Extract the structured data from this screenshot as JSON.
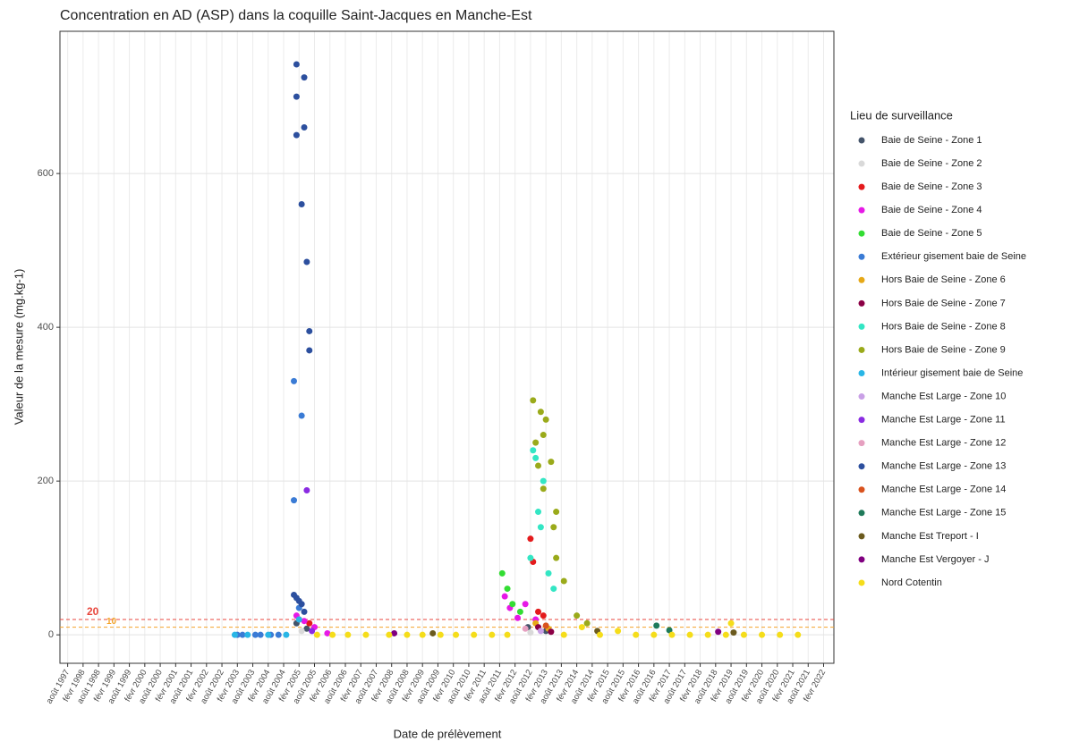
{
  "chart_data": {
    "type": "scatter",
    "title": "Concentration en AD (ASP) dans la coquille Saint-Jacques en Manche-Est",
    "x_label": "Date de prélèvement",
    "y_label": "Valeur de la mesure (mg.kg-1)",
    "legend_title": "Lieu de surveillance",
    "legend": "right",
    "grid": true,
    "xlim": [
      "1997-05",
      "2022-06"
    ],
    "ylim": [
      -37,
      785
    ],
    "yticks": [
      0,
      200,
      400,
      600
    ],
    "xticks": [
      {
        "value": "1997-08",
        "label": "août 1997"
      },
      {
        "value": "1998-02",
        "label": "févr 1998"
      },
      {
        "value": "1998-08",
        "label": "août 1998"
      },
      {
        "value": "1999-02",
        "label": "févr 1999"
      },
      {
        "value": "1999-08",
        "label": "août 1999"
      },
      {
        "value": "2000-02",
        "label": "févr 2000"
      },
      {
        "value": "2000-08",
        "label": "août 2000"
      },
      {
        "value": "2001-02",
        "label": "févr 2001"
      },
      {
        "value": "2001-08",
        "label": "août 2001"
      },
      {
        "value": "2002-02",
        "label": "févr 2002"
      },
      {
        "value": "2002-08",
        "label": "août 2002"
      },
      {
        "value": "2003-02",
        "label": "févr 2003"
      },
      {
        "value": "2003-08",
        "label": "août 2003"
      },
      {
        "value": "2004-02",
        "label": "févr 2004"
      },
      {
        "value": "2004-08",
        "label": "août 2004"
      },
      {
        "value": "2005-02",
        "label": "févr 2005"
      },
      {
        "value": "2005-08",
        "label": "août 2005"
      },
      {
        "value": "2006-02",
        "label": "févr 2006"
      },
      {
        "value": "2006-08",
        "label": "août 2006"
      },
      {
        "value": "2007-02",
        "label": "févr 2007"
      },
      {
        "value": "2007-08",
        "label": "août 2007"
      },
      {
        "value": "2008-02",
        "label": "févr 2008"
      },
      {
        "value": "2008-08",
        "label": "août 2008"
      },
      {
        "value": "2009-02",
        "label": "févr 2009"
      },
      {
        "value": "2009-08",
        "label": "août 2009"
      },
      {
        "value": "2010-02",
        "label": "févr 2010"
      },
      {
        "value": "2010-08",
        "label": "août 2010"
      },
      {
        "value": "2011-02",
        "label": "févr 2011"
      },
      {
        "value": "2011-08",
        "label": "août 2011"
      },
      {
        "value": "2012-02",
        "label": "févr 2012"
      },
      {
        "value": "2012-08",
        "label": "août 2012"
      },
      {
        "value": "2013-02",
        "label": "févr 2013"
      },
      {
        "value": "2013-08",
        "label": "août 2013"
      },
      {
        "value": "2014-02",
        "label": "févr 2014"
      },
      {
        "value": "2014-08",
        "label": "août 2014"
      },
      {
        "value": "2015-02",
        "label": "févr 2015"
      },
      {
        "value": "2015-08",
        "label": "août 2015"
      },
      {
        "value": "2016-02",
        "label": "févr 2016"
      },
      {
        "value": "2016-08",
        "label": "août 2016"
      },
      {
        "value": "2017-02",
        "label": "févr 2017"
      },
      {
        "value": "2017-08",
        "label": "août 2017"
      },
      {
        "value": "2018-02",
        "label": "févr 2018"
      },
      {
        "value": "2018-08",
        "label": "août 2018"
      },
      {
        "value": "2019-02",
        "label": "févr 2019"
      },
      {
        "value": "2019-08",
        "label": "août 2019"
      },
      {
        "value": "2020-02",
        "label": "févr 2020"
      },
      {
        "value": "2020-08",
        "label": "août 2020"
      },
      {
        "value": "2021-02",
        "label": "févr 2021"
      },
      {
        "value": "2021-08",
        "label": "août 2021"
      },
      {
        "value": "2022-02",
        "label": "févr 2022"
      }
    ],
    "hlines": [
      {
        "value": 20,
        "color": "#e8463c"
      },
      {
        "value": 10,
        "color": "#f4a32a"
      }
    ],
    "series": [
      {
        "name": "Baie de Seine - Zone 1",
        "color": "#44546a",
        "x": [
          "2005-01",
          "2005-05",
          "2012-07",
          "2013-02"
        ],
        "values": [
          15,
          8,
          10,
          5
        ]
      },
      {
        "name": "Baie de Seine - Zone 2",
        "color": "#d9d9d9",
        "x": [
          "2005-03",
          "2012-08"
        ],
        "values": [
          5,
          3
        ]
      },
      {
        "name": "Baie de Seine - Zone 3",
        "color": "#e41a1c",
        "x": [
          "2005-02",
          "2005-06",
          "2012-08",
          "2012-09",
          "2012-11",
          "2013-01"
        ],
        "values": [
          20,
          15,
          125,
          95,
          30,
          25
        ]
      },
      {
        "name": "Baie de Seine - Zone 4",
        "color": "#e619e6",
        "x": [
          "2005-01",
          "2005-04",
          "2005-08",
          "2006-01",
          "2011-10",
          "2011-12",
          "2012-03",
          "2012-06",
          "2012-10"
        ],
        "values": [
          25,
          18,
          10,
          2,
          50,
          35,
          22,
          40,
          20
        ]
      },
      {
        "name": "Baie de Seine - Zone 5",
        "color": "#33dd33",
        "x": [
          "2011-09",
          "2011-11",
          "2012-01",
          "2012-04"
        ],
        "values": [
          80,
          60,
          40,
          30
        ]
      },
      {
        "name": "Extérieur gisement baie de Seine",
        "color": "#3a7bd5",
        "x": [
          "2003-02",
          "2003-04",
          "2003-09",
          "2003-11",
          "2004-03",
          "2004-06",
          "2004-12",
          "2005-03",
          "2004-12",
          "2005-02"
        ],
        "values": [
          0,
          0,
          0,
          0,
          0,
          0,
          330,
          285,
          175,
          35
        ]
      },
      {
        "name": "Hors Baie de Seine - Zone 6",
        "color": "#e6a817",
        "x": [
          "2012-10",
          "2013-03"
        ],
        "values": [
          15,
          8
        ]
      },
      {
        "name": "Hors Baie de Seine - Zone 7",
        "color": "#8b0045",
        "x": [
          "2012-11",
          "2013-04"
        ],
        "values": [
          10,
          4
        ]
      },
      {
        "name": "Hors Baie de Seine - Zone 8",
        "color": "#33e6c4",
        "x": [
          "2012-09",
          "2012-10",
          "2012-11",
          "2012-12",
          "2013-01",
          "2013-03",
          "2013-05",
          "2012-08"
        ],
        "values": [
          240,
          230,
          160,
          140,
          200,
          80,
          60,
          100
        ]
      },
      {
        "name": "Hors Baie de Seine - Zone 9",
        "color": "#9aaa1a",
        "x": [
          "2012-09",
          "2012-12",
          "2013-02",
          "2013-01",
          "2012-10",
          "2013-04",
          "2012-11",
          "2013-01",
          "2013-06",
          "2013-05",
          "2013-06",
          "2013-09",
          "2014-02",
          "2014-06"
        ],
        "values": [
          305,
          290,
          280,
          260,
          250,
          225,
          220,
          190,
          160,
          140,
          100,
          70,
          25,
          15
        ]
      },
      {
        "name": "Intérieur gisement baie de Seine",
        "color": "#29b6e6",
        "x": [
          "2003-01",
          "2003-06",
          "2004-02",
          "2004-09",
          "2005-02"
        ],
        "values": [
          0,
          0,
          0,
          0,
          20
        ]
      },
      {
        "name": "Manche Est Large - Zone 10",
        "color": "#c9a0e6",
        "x": [
          "2012-12"
        ],
        "values": [
          5
        ]
      },
      {
        "name": "Manche Est Large - Zone 11",
        "color": "#8a2be2",
        "x": [
          "2005-05",
          "2005-07"
        ],
        "values": [
          188,
          5
        ]
      },
      {
        "name": "Manche Est Large - Zone 12",
        "color": "#e6a0c0",
        "x": [
          "2012-06"
        ],
        "values": [
          8
        ]
      },
      {
        "name": "Manche Est Large - Zone 13",
        "color": "#2c4f9e",
        "x": [
          "2005-01",
          "2005-01",
          "2005-01",
          "2005-04",
          "2005-04",
          "2005-03",
          "2005-05",
          "2005-06",
          "2005-06",
          "2004-12",
          "2005-01",
          "2005-02",
          "2005-03",
          "2005-04"
        ],
        "values": [
          742,
          700,
          650,
          725,
          660,
          560,
          485,
          395,
          370,
          52,
          48,
          44,
          40,
          30
        ]
      },
      {
        "name": "Manche Est Large - Zone 14",
        "color": "#d9531e",
        "x": [
          "2013-02"
        ],
        "values": [
          12
        ]
      },
      {
        "name": "Manche Est Large - Zone 15",
        "color": "#1f7a5a",
        "x": [
          "2016-09",
          "2017-02"
        ],
        "values": [
          12,
          6
        ]
      },
      {
        "name": "Manche Est Treport - I",
        "color": "#6b5a1e",
        "x": [
          "2009-06",
          "2014-10",
          "2019-03"
        ],
        "values": [
          2,
          5,
          3
        ]
      },
      {
        "name": "Manche Est Vergoyer - J",
        "color": "#800080",
        "x": [
          "2008-03",
          "2018-09"
        ],
        "values": [
          2,
          4
        ]
      },
      {
        "name": "Nord Cotentin",
        "color": "#f5dd1a",
        "x": [
          "2005-09",
          "2006-03",
          "2006-09",
          "2007-04",
          "2008-01",
          "2008-08",
          "2009-02",
          "2009-09",
          "2010-03",
          "2010-10",
          "2011-05",
          "2011-11",
          "2013-09",
          "2014-04",
          "2014-11",
          "2015-06",
          "2016-01",
          "2016-08",
          "2017-03",
          "2017-10",
          "2018-05",
          "2018-12",
          "2019-02",
          "2019-07",
          "2020-02",
          "2020-09",
          "2021-04"
        ],
        "values": [
          0,
          0,
          0,
          0,
          0,
          0,
          0,
          0,
          0,
          0,
          0,
          0,
          0,
          10,
          0,
          5,
          0,
          0,
          0,
          0,
          0,
          0,
          15,
          0,
          0,
          0,
          0
        ]
      }
    ]
  }
}
